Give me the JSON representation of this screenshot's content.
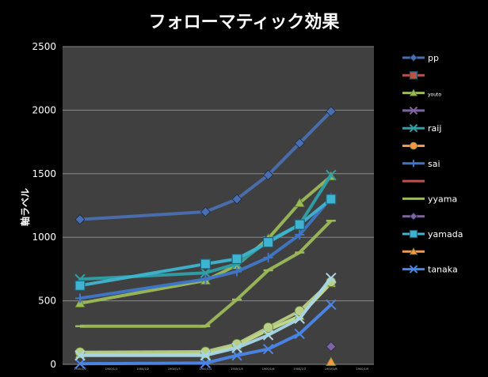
{
  "chart_data": {
    "type": "line",
    "title": "フォローマティック効果",
    "ylabel": "軸ラベル",
    "xlabel": "",
    "ylim": [
      0,
      2500
    ],
    "yticks": [
      0,
      500,
      1000,
      1500,
      2000,
      2500
    ],
    "x": [
      0,
      1,
      2,
      3,
      4,
      5,
      6,
      7,
      8,
      9
    ],
    "x_tick_labels": [
      "1900/1/0",
      "1900/1/1",
      "1900/1/2",
      "1900/1/3",
      "1900/1/4",
      "1900/1/5",
      "1900/1/6",
      "1900/1/7",
      "1900/1/8",
      "1900/1/9"
    ],
    "grid": true,
    "legend_position": "right",
    "series": [
      {
        "name": "pp",
        "color": "#4a6fb0",
        "marker": "diamond",
        "points": [
          [
            0,
            1140
          ],
          [
            4,
            1200
          ],
          [
            5,
            1300
          ],
          [
            6,
            1490
          ],
          [
            7,
            1740
          ],
          [
            8,
            1990
          ]
        ]
      },
      {
        "name": "",
        "color": "#c0504d",
        "marker": "square",
        "points": []
      },
      {
        "name": "youto",
        "color": "#9bbb59",
        "marker": "triangle",
        "points": [
          [
            0,
            480
          ],
          [
            4,
            660
          ],
          [
            5,
            780
          ],
          [
            6,
            990
          ],
          [
            7,
            1270
          ],
          [
            8,
            1480
          ]
        ]
      },
      {
        "name": "",
        "color": "#8064a2",
        "marker": "x",
        "points": []
      },
      {
        "name": "raij",
        "color": "#2fa0a8",
        "marker": "x",
        "points": [
          [
            0,
            670
          ],
          [
            4,
            720
          ],
          [
            5,
            790
          ],
          [
            6,
            970
          ],
          [
            7,
            1100
          ],
          [
            8,
            1490
          ]
        ]
      },
      {
        "name": "",
        "color": "#f79646",
        "marker": "circle",
        "points": []
      },
      {
        "name": "sai",
        "color": "#3f77c8",
        "marker": "plus",
        "points": [
          [
            0,
            520
          ],
          [
            4,
            670
          ],
          [
            5,
            730
          ],
          [
            6,
            840
          ],
          [
            7,
            1020
          ],
          [
            8,
            1310
          ]
        ]
      },
      {
        "name": "",
        "color": "#c0504d",
        "marker": "dash",
        "points": []
      },
      {
        "name": "yyama",
        "color": "#9bbb59",
        "marker": "dash",
        "points": [
          [
            0,
            300
          ],
          [
            4,
            300
          ],
          [
            5,
            510
          ],
          [
            6,
            740
          ],
          [
            7,
            880
          ],
          [
            8,
            1130
          ]
        ]
      },
      {
        "name": "",
        "color": "#8064a2",
        "marker": "diamond",
        "points": [
          [
            8,
            140
          ]
        ]
      },
      {
        "name": "yamada",
        "color": "#3fb4d0",
        "marker": "square",
        "points": [
          [
            0,
            620
          ],
          [
            4,
            790
          ],
          [
            5,
            830
          ],
          [
            6,
            960
          ],
          [
            7,
            1100
          ],
          [
            8,
            1300
          ]
        ]
      },
      {
        "name": "",
        "color": "#f79646",
        "marker": "triangle",
        "points": [
          [
            8,
            20
          ]
        ]
      },
      {
        "name": "tanaka",
        "color": "#4a86e8",
        "marker": "x",
        "points": [
          [
            0,
            5
          ],
          [
            4,
            10
          ],
          [
            5,
            70
          ],
          [
            6,
            120
          ],
          [
            7,
            240
          ],
          [
            8,
            470
          ]
        ]
      },
      {
        "name": "",
        "color": "#c7e08a",
        "marker": "triangle",
        "points": [
          [
            0,
            80
          ],
          [
            4,
            80
          ],
          [
            5,
            150
          ],
          [
            6,
            270
          ],
          [
            7,
            380
          ],
          [
            8,
            640
          ]
        ]
      },
      {
        "name": "",
        "color": "#b8cf86",
        "marker": "circle",
        "points": [
          [
            0,
            95
          ],
          [
            4,
            100
          ],
          [
            5,
            160
          ],
          [
            6,
            290
          ],
          [
            7,
            420
          ],
          [
            8,
            650
          ]
        ]
      },
      {
        "name": "",
        "color": "#a9d6e8",
        "marker": "x",
        "points": [
          [
            0,
            70
          ],
          [
            4,
            70
          ],
          [
            5,
            130
          ],
          [
            6,
            230
          ],
          [
            7,
            360
          ],
          [
            8,
            680
          ]
        ]
      }
    ]
  }
}
